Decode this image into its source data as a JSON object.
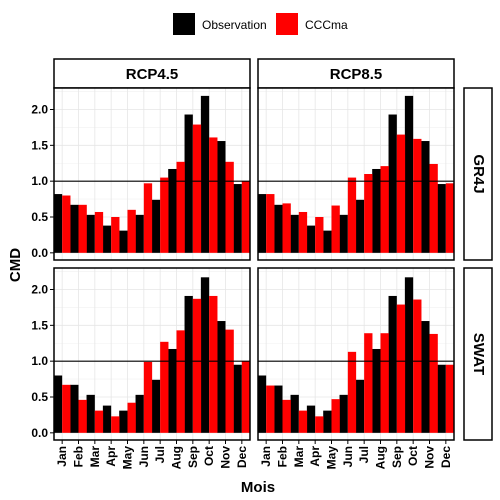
{
  "chart_data": {
    "type": "bar",
    "xlabel": "Mois",
    "ylabel": "CMD",
    "ylim": [
      -0.1,
      2.3
    ],
    "yticks": [
      "0.0",
      "0.5",
      "1.0",
      "1.5",
      "2.0"
    ],
    "reference_line": 1.0,
    "grid": true,
    "legend_position": "top",
    "categories": [
      "Jan",
      "Feb",
      "Mar",
      "Apr",
      "May",
      "Jun",
      "Jul",
      "Aug",
      "Sep",
      "Oct",
      "Nov",
      "Dec"
    ],
    "colors": {
      "Observation": "#000000",
      "CCCma": "#ff0000"
    },
    "legend": [
      "Observation",
      "CCCma"
    ],
    "col_facets": [
      "RCP4.5",
      "RCP8.5"
    ],
    "row_facets": [
      "GR4J",
      "SWAT"
    ],
    "panels": [
      {
        "row": "GR4J",
        "col": "RCP4.5",
        "series": [
          {
            "name": "Observation",
            "values": [
              0.82,
              0.67,
              0.53,
              0.38,
              0.31,
              0.53,
              0.74,
              1.17,
              1.93,
              2.19,
              1.56,
              0.96
            ]
          },
          {
            "name": "CCCma",
            "values": [
              0.8,
              0.67,
              0.57,
              0.5,
              0.6,
              0.97,
              1.05,
              1.27,
              1.79,
              1.61,
              1.27,
              1.0
            ]
          }
        ]
      },
      {
        "row": "GR4J",
        "col": "RCP8.5",
        "series": [
          {
            "name": "Observation",
            "values": [
              0.82,
              0.67,
              0.53,
              0.38,
              0.31,
              0.53,
              0.74,
              1.17,
              1.93,
              2.19,
              1.56,
              0.96
            ]
          },
          {
            "name": "CCCma",
            "values": [
              0.82,
              0.69,
              0.57,
              0.5,
              0.66,
              1.05,
              1.1,
              1.21,
              1.65,
              1.59,
              1.24,
              0.97
            ]
          }
        ]
      },
      {
        "row": "SWAT",
        "col": "RCP4.5",
        "series": [
          {
            "name": "Observation",
            "values": [
              0.8,
              0.67,
              0.53,
              0.38,
              0.31,
              0.53,
              0.74,
              1.17,
              1.91,
              2.17,
              1.56,
              0.95
            ]
          },
          {
            "name": "CCCma",
            "values": [
              0.67,
              0.46,
              0.31,
              0.23,
              0.42,
              0.99,
              1.27,
              1.43,
              1.87,
              1.91,
              1.44,
              1.0
            ]
          }
        ]
      },
      {
        "row": "SWAT",
        "col": "RCP8.5",
        "series": [
          {
            "name": "Observation",
            "values": [
              0.8,
              0.66,
              0.53,
              0.38,
              0.31,
              0.53,
              0.74,
              1.17,
              1.91,
              2.17,
              1.56,
              0.95
            ]
          },
          {
            "name": "CCCma",
            "values": [
              0.66,
              0.46,
              0.31,
              0.23,
              0.47,
              1.13,
              1.39,
              1.39,
              1.79,
              1.86,
              1.38,
              0.95
            ]
          }
        ]
      }
    ]
  }
}
